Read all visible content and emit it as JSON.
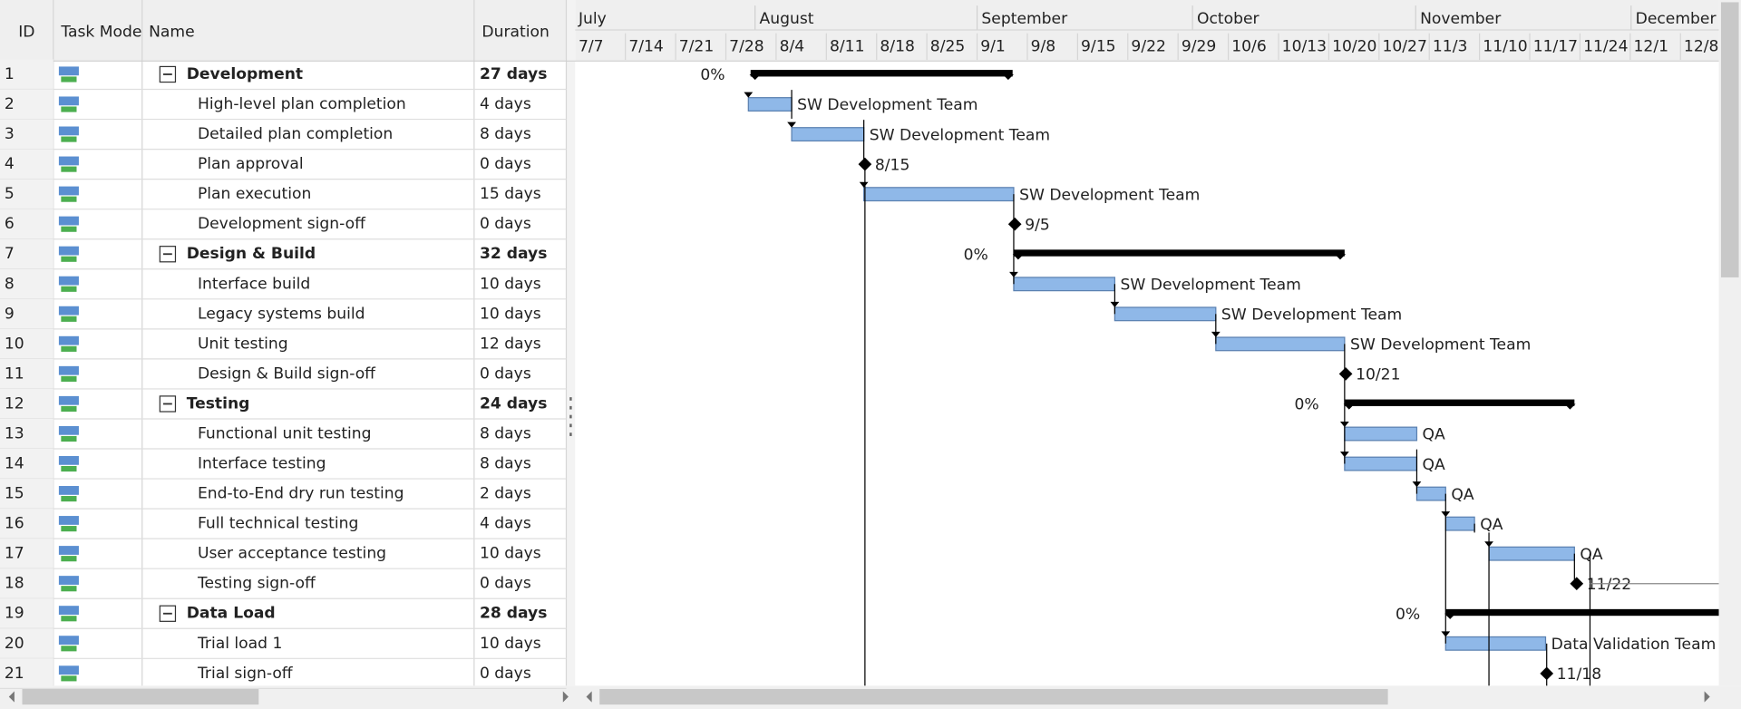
{
  "table": {
    "headers": [
      "ID",
      "Task Mode",
      "Name",
      "Duration"
    ],
    "rows": [
      {
        "id": 1,
        "name": "Development",
        "duration": "27 days",
        "bar_label": "0%"
      },
      {
        "id": 2,
        "name": "High-level plan completion",
        "duration": "4 days",
        "bar_label": "SW Development Team"
      },
      {
        "id": 3,
        "name": "Detailed plan completion",
        "duration": "8 days",
        "bar_label": "SW Development Team"
      },
      {
        "id": 4,
        "name": "Plan approval",
        "duration": "0 days",
        "bar_label": "8/15"
      },
      {
        "id": 5,
        "name": "Plan execution",
        "duration": "15 days",
        "bar_label": "SW Development Team"
      },
      {
        "id": 6,
        "name": "Development sign-off",
        "duration": "0 days",
        "bar_label": "9/5"
      },
      {
        "id": 7,
        "name": "Design & Build",
        "duration": "32 days",
        "bar_label": "0%"
      },
      {
        "id": 8,
        "name": "Interface build",
        "duration": "10 days",
        "bar_label": "SW Development Team"
      },
      {
        "id": 9,
        "name": "Legacy systems build",
        "duration": "10 days",
        "bar_label": "SW Development Team"
      },
      {
        "id": 10,
        "name": "Unit testing",
        "duration": "12 days",
        "bar_label": "SW Development Team"
      },
      {
        "id": 11,
        "name": "Design & Build sign-off",
        "duration": "0 days",
        "bar_label": "10/21"
      },
      {
        "id": 12,
        "name": "Testing",
        "duration": "24 days",
        "bar_label": "0%"
      },
      {
        "id": 13,
        "name": "Functional unit testing",
        "duration": "8 days",
        "bar_label": "QA"
      },
      {
        "id": 14,
        "name": "Interface testing",
        "duration": "8 days",
        "bar_label": "QA"
      },
      {
        "id": 15,
        "name": "End-to-End dry run testing",
        "duration": "2 days",
        "bar_label": "QA"
      },
      {
        "id": 16,
        "name": "Full technical testing",
        "duration": "4 days",
        "bar_label": "QA"
      },
      {
        "id": 17,
        "name": "User acceptance testing",
        "duration": "10 days",
        "bar_label": "QA"
      },
      {
        "id": 18,
        "name": "Testing sign-off",
        "duration": "0 days",
        "bar_label": "11/22"
      },
      {
        "id": 19,
        "name": "Data Load",
        "duration": "28 days",
        "bar_label": "0%"
      },
      {
        "id": 20,
        "name": "Trial load 1",
        "duration": "10 days",
        "bar_label": "Data Validation Team"
      },
      {
        "id": 21,
        "name": "Trial sign-off",
        "duration": "0 days",
        "bar_label": "11/18"
      }
    ]
  },
  "timeline": {
    "months": [
      "July",
      "August",
      "September",
      "October",
      "November",
      "December"
    ],
    "weeks": [
      "7/7",
      "7/14",
      "7/21",
      "7/28",
      "8/4",
      "8/11",
      "8/18",
      "8/25",
      "9/1",
      "9/8",
      "9/15",
      "9/22",
      "9/29",
      "10/6",
      "10/13",
      "10/20",
      "10/27",
      "11/3",
      "11/10",
      "11/17",
      "11/24",
      "12/1",
      "12/8"
    ]
  }
}
